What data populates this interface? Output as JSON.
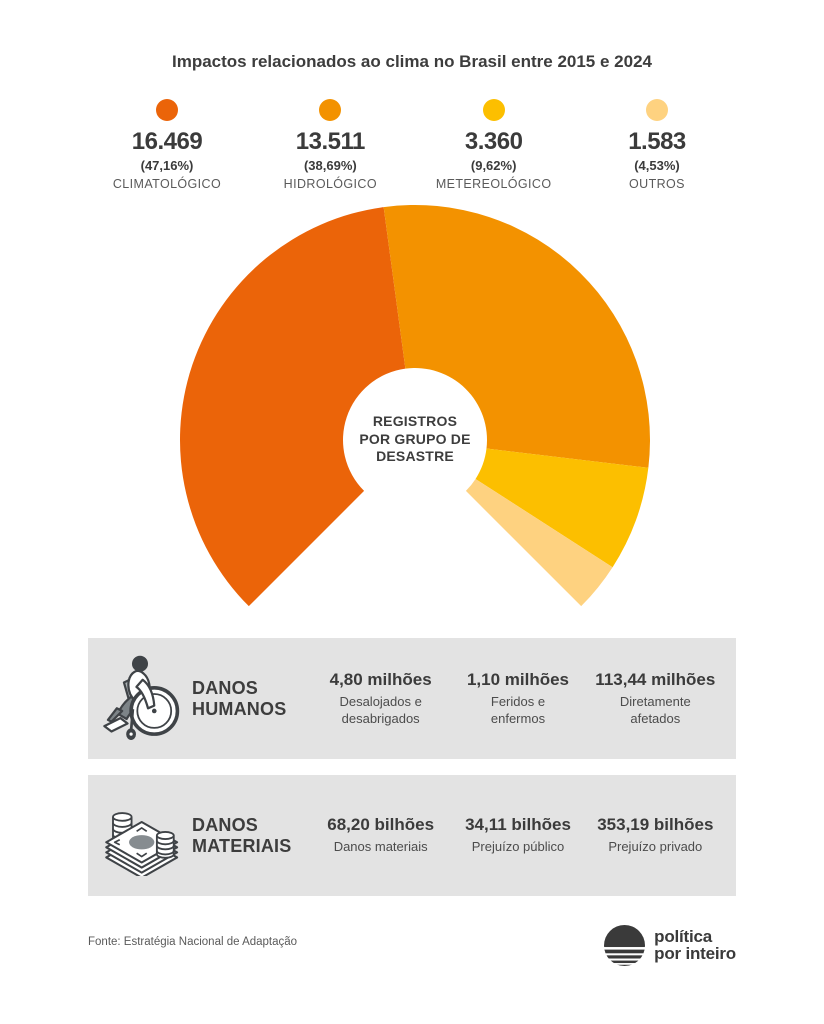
{
  "title": "Impactos relacionados ao clima no Brasil entre 2015 e 2024",
  "chart_data": {
    "type": "pie",
    "title": "Impactos relacionados ao clima no Brasil entre 2015 e 2024",
    "center_label": "REGISTROS POR GRUPO DE DESASTRE",
    "center_label_lines": [
      "REGISTROS",
      "POR GRUPO DE",
      "DESASTRE"
    ],
    "categories": [
      "CLIMATOLÓGICO",
      "HIDROLÓGICO",
      "METEREOLÓGICO",
      "OUTROS"
    ],
    "values": [
      16469,
      13511,
      3360,
      1583
    ],
    "value_labels": [
      "16.469",
      "13.511",
      "3.360",
      "1.583"
    ],
    "percentages": [
      47.16,
      38.69,
      9.62,
      4.53
    ],
    "percent_labels": [
      "(47,16%)",
      "(38,69%)",
      "(9,62%)",
      "(4,53%)"
    ],
    "colors": [
      "#EB6409",
      "#F39200",
      "#FCBF00",
      "#FED280"
    ],
    "start_angle_deg": 225,
    "total_span_deg": 270,
    "donut": true,
    "legend_position": "top"
  },
  "panels": [
    {
      "icon": "wheelchair",
      "label": "DANOS HUMANOS",
      "stats": [
        {
          "value": "4,80 milhões",
          "label": "Desalojados e desabrigados"
        },
        {
          "value": "1,10 milhões",
          "label": "Feridos e enfermos"
        },
        {
          "value": "113,44 milhões",
          "label": "Diretamente afetados"
        }
      ]
    },
    {
      "icon": "money-stack",
      "label": "DANOS MATERIAIS",
      "stats": [
        {
          "value": "68,20 bilhões",
          "label": "Danos materiais"
        },
        {
          "value": "34,11 bilhões",
          "label": "Prejuízo público"
        },
        {
          "value": "353,19 bilhões",
          "label": "Prejuízo privado"
        }
      ]
    }
  ],
  "footer": {
    "source": "Fonte: Estratégia Nacional de Adaptação",
    "logo": {
      "line1": "política",
      "line2": "por inteiro"
    }
  }
}
